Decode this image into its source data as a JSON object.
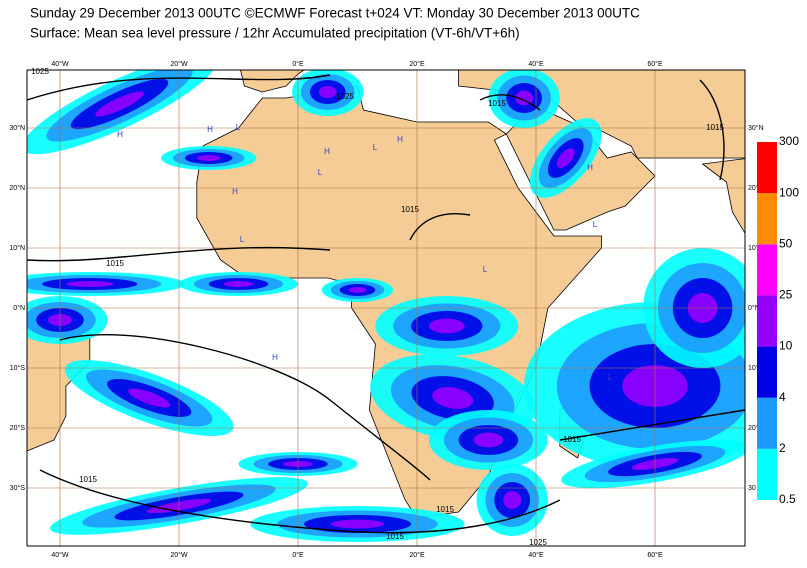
{
  "header": {
    "lines": [
      "Sunday 29 December 2013 00UTC ©ECMWF Forecast t+024 VT: Monday 30 December 2013 00UTC",
      "Surface: Mean sea level pressure / 12hr Accumulated precipitation (VT-6h/VT+6h)"
    ]
  },
  "map": {
    "lon_ticks": [
      {
        "value": -40,
        "label": "40°W"
      },
      {
        "value": -20,
        "label": "20°W"
      },
      {
        "value": 0,
        "label": "0°E"
      },
      {
        "value": 20,
        "label": "20°E"
      },
      {
        "value": 40,
        "label": "40°E"
      },
      {
        "value": 60,
        "label": "60°E"
      }
    ],
    "lat_ticks": [
      {
        "value": 30,
        "label": "30°N"
      },
      {
        "value": 20,
        "label": "20°N"
      },
      {
        "value": 10,
        "label": "10°N"
      },
      {
        "value": 0,
        "label": "0°N"
      },
      {
        "value": -10,
        "label": "10°S"
      },
      {
        "value": -20,
        "label": "20°S"
      },
      {
        "value": -30,
        "label": "30°S"
      }
    ],
    "right_lat_labels": [
      "30°N",
      "20°N",
      "10°N",
      "0°N",
      "10°S",
      "20°S",
      "30"
    ],
    "isobar_labels": [
      "1025",
      "1025",
      "1015",
      "1015",
      "1015",
      "1015",
      "1015",
      "1015",
      "1015",
      "1015",
      "1025"
    ],
    "pressure_centers": [
      "H",
      "H",
      "L",
      "H",
      "L",
      "H",
      "L",
      "H",
      "L",
      "L",
      "H",
      "L",
      "H",
      "L"
    ]
  },
  "colorbar": {
    "levels": [
      0.5,
      2,
      4,
      10,
      25,
      50,
      100,
      300
    ],
    "colors": [
      "#00ffff",
      "#1e9bff",
      "#0000e6",
      "#9600ff",
      "#ff00ff",
      "#ff8c00",
      "#ff0000"
    ]
  }
}
